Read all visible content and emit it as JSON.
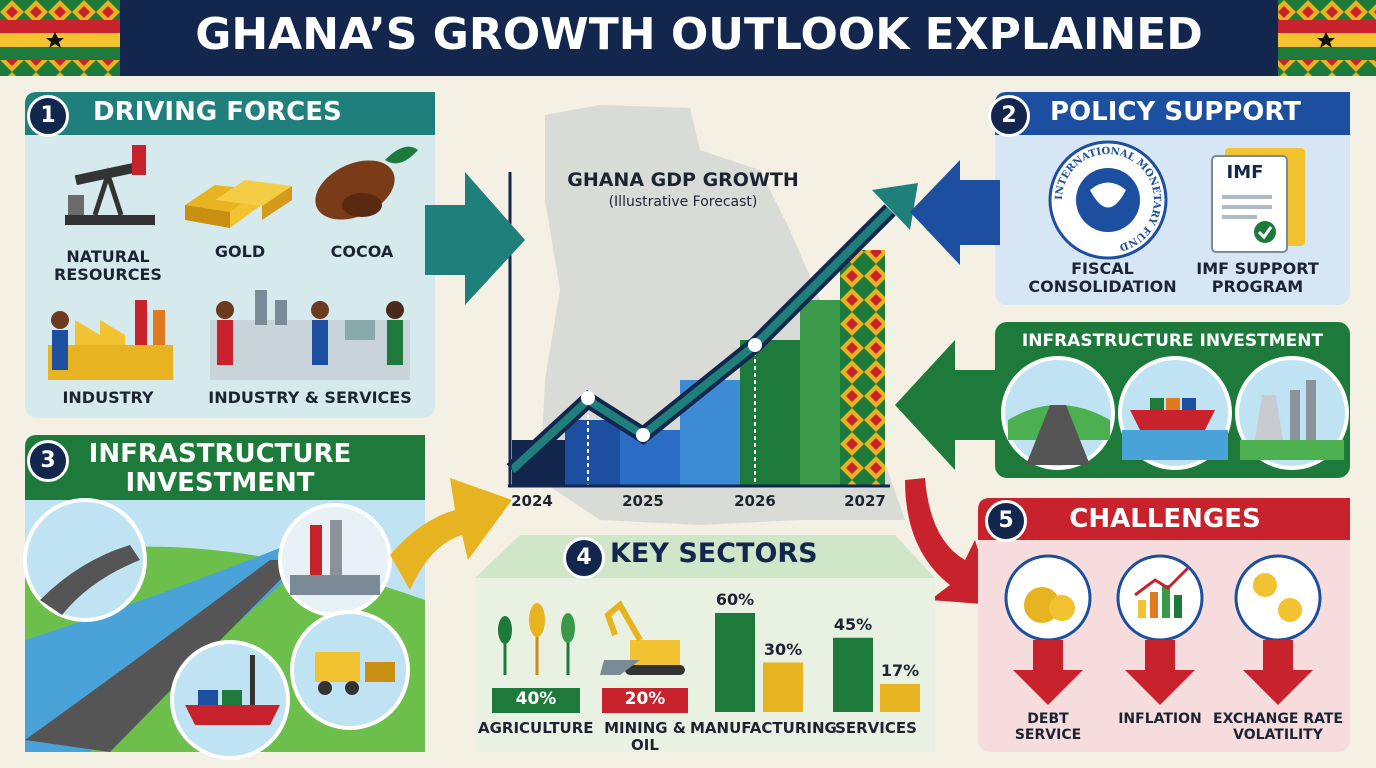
{
  "header": {
    "title": "GHANA’S GROWTH OUTLOOK EXPLAINED"
  },
  "driving_forces": {
    "number": "1",
    "title": "DRIVING FORCES",
    "items": [
      "NATURAL RESOURCES",
      "GOLD",
      "COCOA",
      "INDUSTRY",
      "INDUSTRY & SERVICES"
    ]
  },
  "policy_support": {
    "number": "2",
    "title": "POLICY SUPPORT",
    "seal_text": "INTERNATIONAL MONETARY FUND",
    "document_label": "IMF",
    "items": [
      "FISCAL CONSOLIDATION",
      "IMF SUPPORT PROGRAM"
    ]
  },
  "infrastructure_right": {
    "title": "INFRASTRUCTURE INVESTMENT"
  },
  "infrastructure_investment": {
    "number": "3",
    "title": "INFRASTRUCTURE INVESTMENT"
  },
  "gdp_chart": {
    "title": "GHANA GDP GROWTH",
    "subtitle": "(Illustrative Forecast)",
    "years": [
      "2024",
      "2025",
      "2026",
      "2027"
    ]
  },
  "key_sectors": {
    "number": "4",
    "title": "KEY SECTORS",
    "sectors": [
      {
        "name": "AGRICULTURE",
        "label": "40%"
      },
      {
        "name": "MINING & OIL",
        "label": "20%"
      },
      {
        "name": "MANUFACTURING",
        "values": [
          60,
          30
        ],
        "value_labels": [
          "60%",
          "30%"
        ]
      },
      {
        "name": "SERVICES",
        "values": [
          45,
          17
        ],
        "value_labels": [
          "45%",
          "17%"
        ]
      }
    ]
  },
  "challenges": {
    "number": "5",
    "title": "CHALLENGES",
    "items": [
      "DEBT SERVICE",
      "INFLATION",
      "EXCHANGE RATE VOLATILITY"
    ]
  }
}
